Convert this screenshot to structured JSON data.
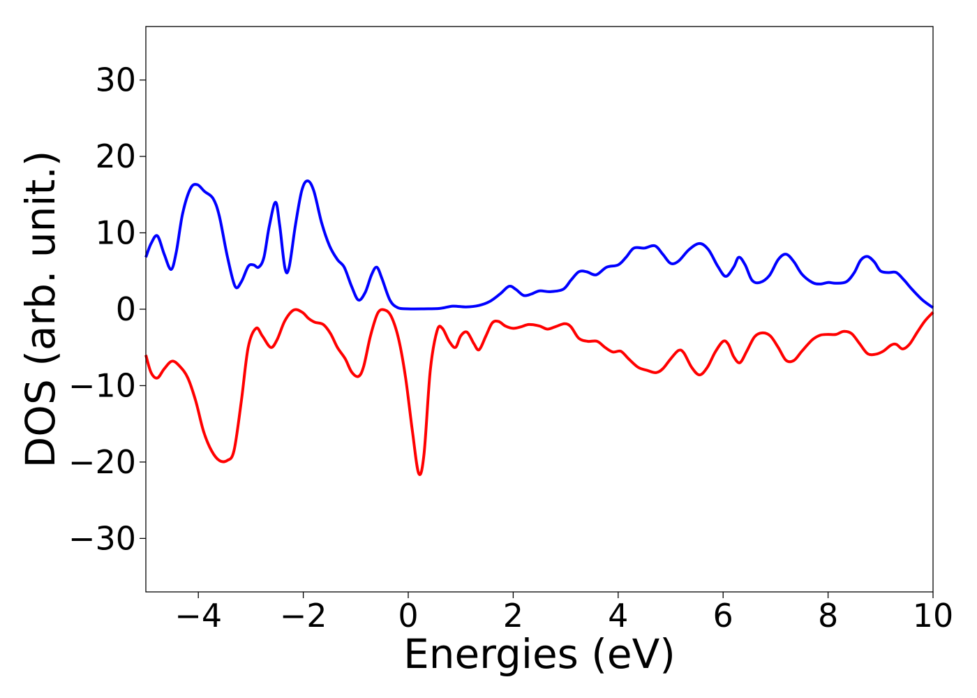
{
  "chart_data": {
    "type": "line",
    "xlabel": "Energies (eV)",
    "ylabel": "DOS (arb. unit.)",
    "xlim": [
      -5,
      10
    ],
    "ylim": [
      -37,
      37
    ],
    "grid": false,
    "xticks": [
      -4,
      -2,
      0,
      2,
      4,
      6,
      8,
      10
    ],
    "xtick_labels": [
      "−4",
      "−2",
      "0",
      "2",
      "4",
      "6",
      "8",
      "10"
    ],
    "yticks": [
      30,
      20,
      10,
      0,
      -10,
      -20,
      -30
    ],
    "ytick_labels": [
      "30",
      "20",
      "10",
      "0",
      "−10",
      "−20",
      "−30"
    ],
    "series": [
      {
        "color": "#0000ff",
        "points": [
          [
            -5.0,
            6.8
          ],
          [
            -4.9,
            8.6
          ],
          [
            -4.78,
            9.6
          ],
          [
            -4.65,
            7.2
          ],
          [
            -4.52,
            5.2
          ],
          [
            -4.42,
            7.5
          ],
          [
            -4.3,
            12.5
          ],
          [
            -4.15,
            15.8
          ],
          [
            -4.02,
            16.3
          ],
          [
            -3.88,
            15.4
          ],
          [
            -3.72,
            14.5
          ],
          [
            -3.6,
            12.2
          ],
          [
            -3.45,
            7.0
          ],
          [
            -3.3,
            3.0
          ],
          [
            -3.18,
            3.6
          ],
          [
            -3.05,
            5.6
          ],
          [
            -2.95,
            5.8
          ],
          [
            -2.85,
            5.5
          ],
          [
            -2.75,
            6.8
          ],
          [
            -2.65,
            10.8
          ],
          [
            -2.53,
            14.0
          ],
          [
            -2.45,
            11.0
          ],
          [
            -2.35,
            5.4
          ],
          [
            -2.27,
            5.5
          ],
          [
            -2.15,
            11.0
          ],
          [
            -2.03,
            15.5
          ],
          [
            -1.92,
            16.8
          ],
          [
            -1.8,
            15.5
          ],
          [
            -1.65,
            11.3
          ],
          [
            -1.5,
            8.3
          ],
          [
            -1.35,
            6.5
          ],
          [
            -1.22,
            5.5
          ],
          [
            -1.08,
            3.0
          ],
          [
            -0.95,
            1.2
          ],
          [
            -0.82,
            2.2
          ],
          [
            -0.7,
            4.5
          ],
          [
            -0.6,
            5.5
          ],
          [
            -0.5,
            4.0
          ],
          [
            -0.35,
            1.2
          ],
          [
            -0.2,
            0.2
          ],
          [
            0.0,
            0.05
          ],
          [
            0.3,
            0.05
          ],
          [
            0.6,
            0.1
          ],
          [
            0.85,
            0.4
          ],
          [
            1.1,
            0.3
          ],
          [
            1.35,
            0.5
          ],
          [
            1.55,
            1.0
          ],
          [
            1.75,
            2.0
          ],
          [
            1.92,
            3.0
          ],
          [
            2.05,
            2.6
          ],
          [
            2.2,
            1.8
          ],
          [
            2.35,
            2.0
          ],
          [
            2.5,
            2.4
          ],
          [
            2.7,
            2.3
          ],
          [
            2.95,
            2.6
          ],
          [
            3.1,
            3.8
          ],
          [
            3.25,
            4.9
          ],
          [
            3.4,
            4.9
          ],
          [
            3.58,
            4.5
          ],
          [
            3.78,
            5.5
          ],
          [
            4.0,
            5.8
          ],
          [
            4.15,
            6.8
          ],
          [
            4.3,
            8.0
          ],
          [
            4.5,
            8.0
          ],
          [
            4.7,
            8.3
          ],
          [
            4.85,
            7.2
          ],
          [
            5.0,
            6.0
          ],
          [
            5.15,
            6.3
          ],
          [
            5.35,
            7.8
          ],
          [
            5.55,
            8.6
          ],
          [
            5.72,
            7.8
          ],
          [
            5.9,
            5.6
          ],
          [
            6.05,
            4.3
          ],
          [
            6.2,
            5.5
          ],
          [
            6.3,
            6.8
          ],
          [
            6.42,
            5.8
          ],
          [
            6.55,
            3.8
          ],
          [
            6.7,
            3.5
          ],
          [
            6.88,
            4.4
          ],
          [
            7.05,
            6.5
          ],
          [
            7.2,
            7.2
          ],
          [
            7.35,
            6.2
          ],
          [
            7.5,
            4.6
          ],
          [
            7.7,
            3.5
          ],
          [
            7.85,
            3.3
          ],
          [
            8.0,
            3.5
          ],
          [
            8.15,
            3.4
          ],
          [
            8.35,
            3.6
          ],
          [
            8.5,
            4.8
          ],
          [
            8.62,
            6.4
          ],
          [
            8.75,
            6.9
          ],
          [
            8.88,
            6.2
          ],
          [
            9.0,
            5.0
          ],
          [
            9.15,
            4.8
          ],
          [
            9.3,
            4.8
          ],
          [
            9.45,
            3.8
          ],
          [
            9.6,
            2.6
          ],
          [
            9.8,
            1.2
          ],
          [
            10.0,
            0.2
          ]
        ]
      },
      {
        "color": "#ff0000",
        "points": [
          [
            -5.0,
            -6.0
          ],
          [
            -4.9,
            -8.3
          ],
          [
            -4.78,
            -9.0
          ],
          [
            -4.65,
            -7.8
          ],
          [
            -4.5,
            -6.8
          ],
          [
            -4.35,
            -7.5
          ],
          [
            -4.2,
            -9.0
          ],
          [
            -4.05,
            -12.0
          ],
          [
            -3.9,
            -16.0
          ],
          [
            -3.75,
            -18.5
          ],
          [
            -3.6,
            -19.8
          ],
          [
            -3.45,
            -19.8
          ],
          [
            -3.32,
            -18.5
          ],
          [
            -3.18,
            -12.0
          ],
          [
            -3.05,
            -5.0
          ],
          [
            -2.9,
            -2.5
          ],
          [
            -2.78,
            -3.5
          ],
          [
            -2.62,
            -5.0
          ],
          [
            -2.5,
            -4.0
          ],
          [
            -2.35,
            -1.5
          ],
          [
            -2.18,
            -0.1
          ],
          [
            -2.02,
            -0.4
          ],
          [
            -1.9,
            -1.2
          ],
          [
            -1.78,
            -1.7
          ],
          [
            -1.62,
            -2.0
          ],
          [
            -1.48,
            -3.2
          ],
          [
            -1.35,
            -5.0
          ],
          [
            -1.2,
            -6.5
          ],
          [
            -1.08,
            -8.2
          ],
          [
            -0.95,
            -8.8
          ],
          [
            -0.85,
            -7.5
          ],
          [
            -0.72,
            -3.5
          ],
          [
            -0.58,
            -0.5
          ],
          [
            -0.45,
            -0.1
          ],
          [
            -0.32,
            -1.0
          ],
          [
            -0.18,
            -4.0
          ],
          [
            -0.05,
            -9.0
          ],
          [
            0.08,
            -16.0
          ],
          [
            0.2,
            -21.5
          ],
          [
            0.3,
            -19.0
          ],
          [
            0.42,
            -8.0
          ],
          [
            0.55,
            -2.8
          ],
          [
            0.65,
            -2.5
          ],
          [
            0.78,
            -4.2
          ],
          [
            0.9,
            -5.0
          ],
          [
            1.0,
            -3.5
          ],
          [
            1.12,
            -3.0
          ],
          [
            1.25,
            -4.5
          ],
          [
            1.35,
            -5.3
          ],
          [
            1.48,
            -3.5
          ],
          [
            1.6,
            -1.8
          ],
          [
            1.72,
            -1.6
          ],
          [
            1.85,
            -2.2
          ],
          [
            2.0,
            -2.5
          ],
          [
            2.15,
            -2.3
          ],
          [
            2.3,
            -2.0
          ],
          [
            2.5,
            -2.2
          ],
          [
            2.65,
            -2.6
          ],
          [
            2.8,
            -2.3
          ],
          [
            2.98,
            -1.9
          ],
          [
            3.1,
            -2.3
          ],
          [
            3.25,
            -3.8
          ],
          [
            3.42,
            -4.2
          ],
          [
            3.6,
            -4.2
          ],
          [
            3.75,
            -5.0
          ],
          [
            3.9,
            -5.6
          ],
          [
            4.05,
            -5.5
          ],
          [
            4.2,
            -6.5
          ],
          [
            4.38,
            -7.6
          ],
          [
            4.55,
            -8.0
          ],
          [
            4.72,
            -8.3
          ],
          [
            4.85,
            -7.8
          ],
          [
            5.0,
            -6.5
          ],
          [
            5.15,
            -5.4
          ],
          [
            5.25,
            -5.7
          ],
          [
            5.4,
            -7.6
          ],
          [
            5.55,
            -8.6
          ],
          [
            5.7,
            -7.6
          ],
          [
            5.85,
            -5.6
          ],
          [
            6.0,
            -4.2
          ],
          [
            6.1,
            -4.6
          ],
          [
            6.2,
            -6.2
          ],
          [
            6.32,
            -7.0
          ],
          [
            6.45,
            -5.5
          ],
          [
            6.6,
            -3.6
          ],
          [
            6.75,
            -3.1
          ],
          [
            6.9,
            -3.5
          ],
          [
            7.05,
            -5.0
          ],
          [
            7.2,
            -6.7
          ],
          [
            7.35,
            -6.7
          ],
          [
            7.5,
            -5.5
          ],
          [
            7.7,
            -4.0
          ],
          [
            7.85,
            -3.4
          ],
          [
            8.0,
            -3.3
          ],
          [
            8.15,
            -3.3
          ],
          [
            8.3,
            -2.9
          ],
          [
            8.45,
            -3.2
          ],
          [
            8.6,
            -4.5
          ],
          [
            8.75,
            -5.8
          ],
          [
            8.9,
            -5.9
          ],
          [
            9.05,
            -5.5
          ],
          [
            9.2,
            -4.7
          ],
          [
            9.3,
            -4.6
          ],
          [
            9.42,
            -5.2
          ],
          [
            9.55,
            -4.6
          ],
          [
            9.7,
            -3.0
          ],
          [
            9.85,
            -1.5
          ],
          [
            10.0,
            -0.4
          ]
        ]
      }
    ]
  }
}
